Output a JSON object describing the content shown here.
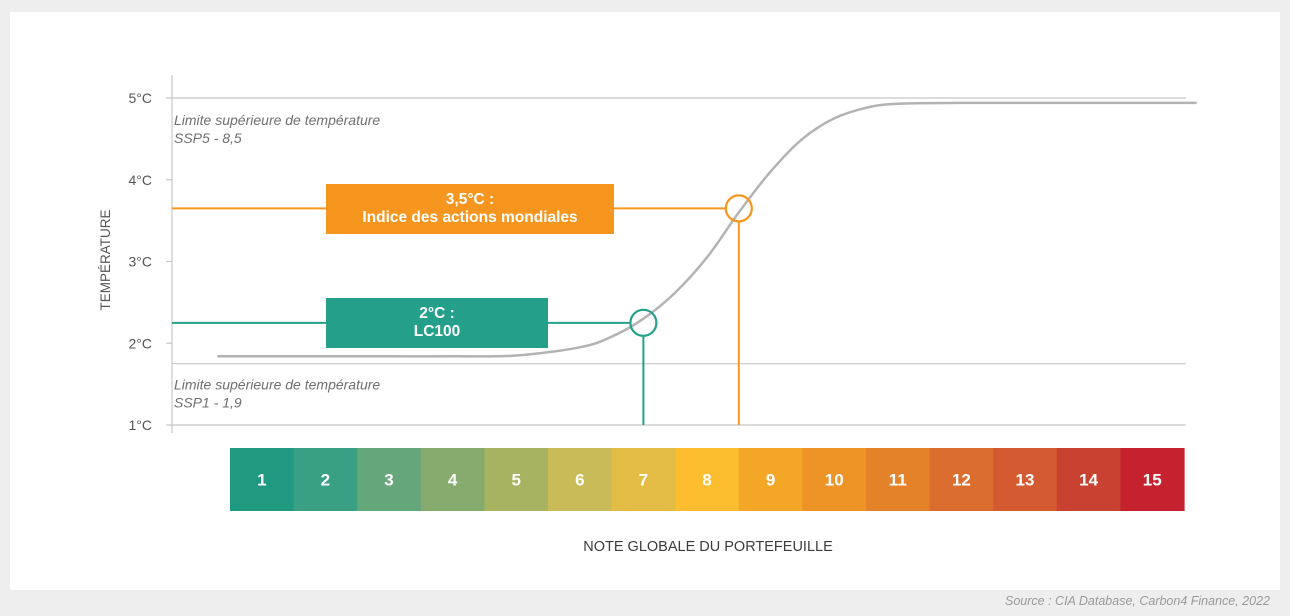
{
  "chart_data": {
    "type": "line",
    "ylabel": "TEMPÉRATURE",
    "xlabel": "NOTE GLOBALE DU PORTEFEUILLE",
    "yticks": [
      "5°C",
      "4°C",
      "3°C",
      "2°C",
      "1°C"
    ],
    "ytick_values": [
      5,
      4,
      3,
      2,
      1
    ],
    "ylim": [
      1,
      5
    ],
    "xlim": [
      0.5,
      15.5
    ],
    "grid": true,
    "scale": {
      "categories": [
        "1",
        "2",
        "3",
        "4",
        "5",
        "6",
        "7",
        "8",
        "9",
        "10",
        "11",
        "12",
        "13",
        "14",
        "15"
      ],
      "colors": [
        "#1f9a80",
        "#3aa083",
        "#65a67a",
        "#86ab6e",
        "#a8b362",
        "#c9bb58",
        "#e2bc45",
        "#fcbd2e",
        "#f4a626",
        "#ee9426",
        "#e48229",
        "#db6e2e",
        "#d45b31",
        "#c94131",
        "#c5212f"
      ]
    },
    "series": [
      {
        "values": [
          {
            "x": 0.3,
            "y": 1.84
          },
          {
            "x": 1,
            "y": 1.84
          },
          {
            "x": 2,
            "y": 1.84
          },
          {
            "x": 3,
            "y": 1.84
          },
          {
            "x": 4,
            "y": 1.84
          },
          {
            "x": 5,
            "y": 1.85
          },
          {
            "x": 6,
            "y": 1.95
          },
          {
            "x": 6.5,
            "y": 2.08
          },
          {
            "x": 7,
            "y": 2.3
          },
          {
            "x": 7.5,
            "y": 2.62
          },
          {
            "x": 8,
            "y": 3.05
          },
          {
            "x": 8.5,
            "y": 3.6
          },
          {
            "x": 9,
            "y": 4.1
          },
          {
            "x": 9.5,
            "y": 4.5
          },
          {
            "x": 10,
            "y": 4.75
          },
          {
            "x": 10.5,
            "y": 4.88
          },
          {
            "x": 11,
            "y": 4.93
          },
          {
            "x": 12,
            "y": 4.94
          },
          {
            "x": 13,
            "y": 4.94
          },
          {
            "x": 14,
            "y": 4.94
          },
          {
            "x": 15.7,
            "y": 4.94
          }
        ],
        "color": "#b3b3b3"
      }
    ],
    "reference_lines": [
      {
        "y": 5.0,
        "color": "#c8c8c8",
        "label_lines": [
          "Limite supérieure de température",
          "SSP5 - 8,5"
        ]
      },
      {
        "y": 1.75,
        "color": "#c8c8c8",
        "label_lines": [
          "Limite supérieure de température",
          "SSP1 - 1,9"
        ]
      }
    ],
    "markers": [
      {
        "x": 7.0,
        "y": 2.25,
        "color": "#24a08a",
        "label_lines": [
          "2°C :",
          "LC100"
        ]
      },
      {
        "x": 8.5,
        "y": 3.65,
        "color": "#f7961f",
        "label_lines": [
          "3,5°C :",
          "Indice des actions mondiales"
        ]
      }
    ],
    "source": "Source : CIA Database, Carbon4 Finance, 2022"
  }
}
